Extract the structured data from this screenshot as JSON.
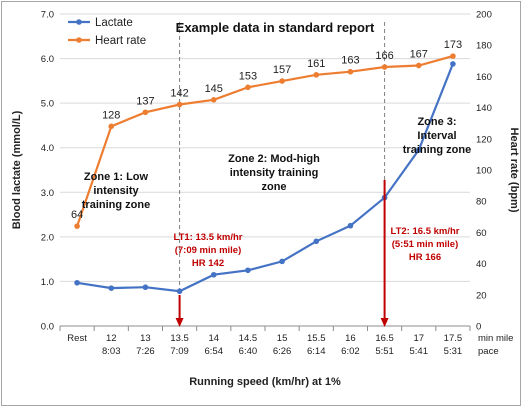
{
  "chart_data": {
    "type": "line",
    "title": "Example data in standard report",
    "xlabel": "Running speed (km/hr) at 1%",
    "ylabel": "Blood lactate (mmol/L)",
    "y2label": "Heart rate (bpm)",
    "ylim": [
      0,
      7
    ],
    "y2lim": [
      0,
      200
    ],
    "yticks": [
      "0.0",
      "1.0",
      "2.0",
      "3.0",
      "4.0",
      "5.0",
      "6.0",
      "7.0"
    ],
    "y2ticks": [
      "0",
      "20",
      "40",
      "60",
      "80",
      "100",
      "120",
      "140",
      "160",
      "180",
      "200"
    ],
    "categories": [
      "Rest",
      "12",
      "13",
      "13.5",
      "14",
      "14.5",
      "15",
      "15.5",
      "16",
      "16.5",
      "17",
      "17.5"
    ],
    "pace": [
      "",
      "8:03",
      "7:26",
      "7:09",
      "6:54",
      "6:40",
      "6:26",
      "6:14",
      "6:02",
      "5:51",
      "5:41",
      "5:31"
    ],
    "pace_unit": [
      "min mile",
      "pace"
    ],
    "grid": "horizontal",
    "legend_position": "top-left",
    "series": [
      {
        "name": "Lactate",
        "axis": "left",
        "color": "#4472c4",
        "values": [
          0.97,
          0.85,
          0.87,
          0.78,
          1.15,
          1.25,
          1.45,
          1.9,
          2.25,
          2.88,
          3.95,
          5.88
        ]
      },
      {
        "name": "Heart rate",
        "axis": "right",
        "color": "#ed7d31",
        "values": [
          64,
          128,
          137,
          142,
          145,
          153,
          157,
          161,
          163,
          166,
          167,
          173
        ],
        "labels": [
          "64",
          "128",
          "137",
          "142",
          "145",
          "153",
          "157",
          "161",
          "163",
          "166",
          "167",
          "173"
        ]
      }
    ],
    "annotations": {
      "zone1": [
        "Zone 1: Low",
        "intensity",
        "training zone"
      ],
      "zone2": [
        "Zone 2: Mod-high",
        "intensity training",
        "zone"
      ],
      "zone3": [
        "Zone 3:",
        "Interval",
        "training zone"
      ],
      "lt1": [
        "LT1: 13.5 km/hr",
        "(7:09 min mile)",
        "HR 142"
      ],
      "lt2": [
        "LT2: 16.5 km/hr",
        "(5:51 min mile)",
        "HR 166"
      ]
    },
    "threshold_lines": [
      "13.5",
      "16.5"
    ],
    "accent_color": "#c00000"
  }
}
